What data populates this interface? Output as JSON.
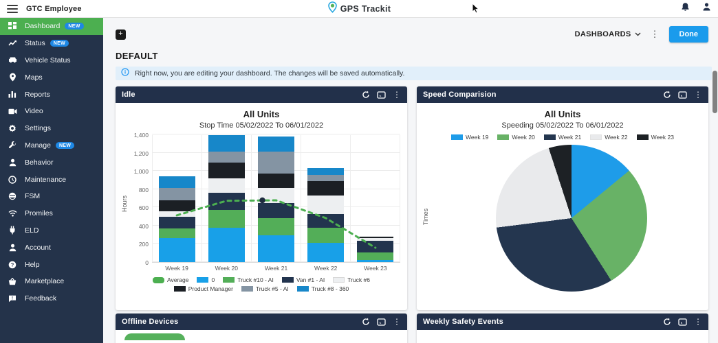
{
  "header": {
    "menu_icon": "hamburger-icon",
    "account_label": "GTC Employee",
    "brand_name": "GPS Trackit",
    "brand_icon": "location-pin-logo",
    "notification_icon": "bell-icon",
    "user_icon": "user-icon"
  },
  "sidebar": {
    "items": [
      {
        "label": "Dashboard",
        "badge": "NEW",
        "icon": "dashboard-grid-icon",
        "active": true
      },
      {
        "label": "Status",
        "badge": "NEW",
        "icon": "status-line-icon"
      },
      {
        "label": "Vehicle Status",
        "icon": "vehicle-icon"
      },
      {
        "label": "Maps",
        "icon": "map-pin-icon"
      },
      {
        "label": "Reports",
        "icon": "bar-chart-icon"
      },
      {
        "label": "Video",
        "icon": "video-camera-icon"
      },
      {
        "label": "Settings",
        "icon": "gear-icon"
      },
      {
        "label": "Manage",
        "badge": "NEW",
        "icon": "wrench-icon"
      },
      {
        "label": "Behavior",
        "icon": "person-icon"
      },
      {
        "label": "Maintenance",
        "icon": "clock-icon"
      },
      {
        "label": "FSM",
        "icon": "face-icon"
      },
      {
        "label": "Promiles",
        "icon": "wifi-icon"
      },
      {
        "label": "ELD",
        "icon": "plug-icon"
      },
      {
        "label": "Account",
        "icon": "person-icon"
      },
      {
        "label": "Help",
        "icon": "question-icon"
      },
      {
        "label": "Marketplace",
        "icon": "basket-icon"
      },
      {
        "label": "Feedback",
        "icon": "feedback-icon"
      }
    ]
  },
  "toolbar": {
    "add_widget_icon": "plus-icon",
    "add_label": "+",
    "dashboards_label": "DASHBOARDS",
    "dashboards_chevron": "chevron-down-icon",
    "overflow_icon": "kebab-icon",
    "done_label": "Done"
  },
  "page": {
    "title": "DEFAULT",
    "banner_icon": "info-icon",
    "banner_text": "Right now, you are editing your dashboard. The changes will be saved automatically."
  },
  "cards": [
    {
      "id": "idle",
      "title": "Idle",
      "icons": [
        "refresh-icon",
        "expand-icon",
        "kebab-icon"
      ]
    },
    {
      "id": "speed",
      "title": "Speed Comparision",
      "icons": [
        "refresh-icon",
        "expand-icon",
        "kebab-icon"
      ]
    },
    {
      "id": "offline",
      "title": "Offline Devices",
      "icons": [
        "refresh-icon",
        "expand-icon",
        "kebab-icon"
      ]
    },
    {
      "id": "weekly",
      "title": "Weekly Safety Events",
      "icons": [
        "refresh-icon",
        "expand-icon",
        "kebab-icon"
      ]
    }
  ],
  "chart_data": [
    {
      "type": "bar",
      "stacked": true,
      "title": "All Units",
      "subtitle": "Stop Time 05/02/2022 To 06/01/2022",
      "xlabel": "",
      "ylabel": "Hours",
      "ylim": [
        0,
        1400
      ],
      "ytick_step": 200,
      "yticks": [
        "0",
        "200",
        "400",
        "600",
        "800",
        "1,000",
        "1,200",
        "1,400"
      ],
      "grid": true,
      "categories": [
        "Week 19",
        "Week 20",
        "Week 21",
        "Week 22",
        "Week 23"
      ],
      "series": [
        {
          "name": "0",
          "color": "#18a0e8",
          "values": [
            260,
            380,
            290,
            210,
            25
          ]
        },
        {
          "name": "Truck #10 - AI",
          "color": "#53ae58",
          "values": [
            110,
            190,
            190,
            170,
            80
          ]
        },
        {
          "name": "Van #1 - AI",
          "color": "#22344e",
          "values": [
            130,
            190,
            170,
            150,
            130
          ]
        },
        {
          "name": "Truck #6",
          "color": "#edeff1",
          "values": [
            60,
            160,
            160,
            200,
            30
          ]
        },
        {
          "name": "Product Manager",
          "color": "#1b1f24",
          "values": [
            120,
            170,
            165,
            160,
            10
          ]
        },
        {
          "name": "Truck #5 - AI",
          "color": "#8494a3",
          "values": [
            130,
            120,
            235,
            70,
            0
          ]
        },
        {
          "name": "Truck #8 - 360",
          "color": "#1787c9",
          "values": [
            130,
            180,
            165,
            70,
            0
          ]
        }
      ],
      "average_line": {
        "name": "Average",
        "color": "#4caf50",
        "style": "dashed",
        "values": [
          520,
          680,
          685,
          490,
          165
        ],
        "marker_category": "Week 21",
        "marker_color": "#1d2b3e"
      },
      "legend_rows": [
        [
          "Average",
          "0",
          "Truck #10 - AI",
          "Van #1 - AI",
          "Truck #6"
        ],
        [
          "Product Manager",
          "Truck #5 - AI",
          "Truck #8 - 360"
        ]
      ],
      "legend_position": "bottom"
    },
    {
      "type": "pie",
      "title": "All Units",
      "subtitle": "Speeding 05/02/2022 To 06/01/2022",
      "ylabel": "Times",
      "legend_position": "top",
      "slices": [
        {
          "label": "Week 19",
          "color": "#1e9ce9",
          "pct": 14
        },
        {
          "label": "Week 20",
          "color": "#68b266",
          "pct": 27
        },
        {
          "label": "Week 21",
          "color": "#24364f",
          "pct": 32
        },
        {
          "label": "Week 22",
          "color": "#e9eaec",
          "pct": 22
        },
        {
          "label": "Week 23",
          "color": "#1d2125",
          "pct": 5
        }
      ]
    }
  ],
  "colors": {
    "sidebar_bg": "#24334a",
    "active_item_green": "#4caf50",
    "badge_blue": "#1e88e5",
    "card_header_navy": "#22304a",
    "primary_blue": "#1a9bec",
    "banner_bg": "#e1effa"
  }
}
